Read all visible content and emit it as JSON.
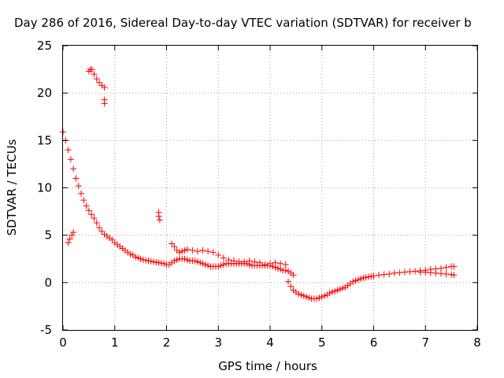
{
  "chart_data": {
    "type": "scatter",
    "title": "Day 286 of 2016, Sidereal Day-to-day VTEC variation (SDTVAR) for receiver b",
    "xlabel": "GPS time / hours",
    "ylabel": "SDTVAR / TECUs",
    "xlim": [
      0,
      8
    ],
    "ylim": [
      -5,
      25
    ],
    "xticks": [
      0,
      1,
      2,
      3,
      4,
      5,
      6,
      7,
      8
    ],
    "yticks": [
      -5,
      0,
      5,
      10,
      15,
      20,
      25
    ],
    "grid": true,
    "marker": "plus",
    "color": "#ff0000",
    "series": [
      {
        "values": [
          [
            0.0,
            15.9
          ],
          [
            0.05,
            15.0
          ],
          [
            0.1,
            14.0
          ],
          [
            0.15,
            13.0
          ],
          [
            0.2,
            12.0
          ],
          [
            0.25,
            11.0
          ],
          [
            0.3,
            10.2
          ],
          [
            0.35,
            9.4
          ],
          [
            0.4,
            8.7
          ],
          [
            0.45,
            8.1
          ],
          [
            0.5,
            7.6
          ],
          [
            0.55,
            7.2
          ],
          [
            0.6,
            6.8
          ],
          [
            0.65,
            6.3
          ],
          [
            0.7,
            5.8
          ],
          [
            0.75,
            5.4
          ],
          [
            0.8,
            5.1
          ],
          [
            0.85,
            4.9
          ],
          [
            0.9,
            4.7
          ],
          [
            0.95,
            4.5
          ],
          [
            1.0,
            4.2
          ],
          [
            1.05,
            4.0
          ],
          [
            1.1,
            3.8
          ],
          [
            1.15,
            3.6
          ],
          [
            1.2,
            3.4
          ],
          [
            1.25,
            3.2
          ],
          [
            1.3,
            3.0
          ],
          [
            1.35,
            2.9
          ],
          [
            1.4,
            2.7
          ],
          [
            1.45,
            2.6
          ],
          [
            1.5,
            2.5
          ],
          [
            1.55,
            2.4
          ],
          [
            1.6,
            2.35
          ],
          [
            1.65,
            2.3
          ],
          [
            1.7,
            2.25
          ],
          [
            1.75,
            2.2
          ],
          [
            1.8,
            2.15
          ],
          [
            1.85,
            2.1
          ],
          [
            1.9,
            2.05
          ],
          [
            1.95,
            2.0
          ],
          [
            2.0,
            1.9
          ],
          [
            2.05,
            1.9
          ],
          [
            2.1,
            2.1
          ],
          [
            2.15,
            2.3
          ],
          [
            2.2,
            2.4
          ],
          [
            2.25,
            2.5
          ],
          [
            2.3,
            2.5
          ],
          [
            2.35,
            2.5
          ],
          [
            2.4,
            2.4
          ],
          [
            2.45,
            2.3
          ],
          [
            2.5,
            2.3
          ],
          [
            2.55,
            2.3
          ],
          [
            2.6,
            2.2
          ],
          [
            2.65,
            2.1
          ],
          [
            2.7,
            2.0
          ],
          [
            2.75,
            1.9
          ],
          [
            2.8,
            1.8
          ],
          [
            2.85,
            1.7
          ],
          [
            2.9,
            1.7
          ],
          [
            2.95,
            1.7
          ],
          [
            3.0,
            1.7
          ],
          [
            3.05,
            1.8
          ],
          [
            3.1,
            1.9
          ],
          [
            3.15,
            2.0
          ],
          [
            3.2,
            2.0
          ],
          [
            3.25,
            2.0
          ],
          [
            3.3,
            2.0
          ],
          [
            3.35,
            2.0
          ],
          [
            3.4,
            2.0
          ],
          [
            3.45,
            2.0
          ],
          [
            3.5,
            2.0
          ],
          [
            3.55,
            2.0
          ],
          [
            3.6,
            1.9
          ],
          [
            3.65,
            1.8
          ],
          [
            3.7,
            1.8
          ],
          [
            3.75,
            1.8
          ],
          [
            3.8,
            1.8
          ],
          [
            3.85,
            1.8
          ],
          [
            3.9,
            1.8
          ],
          [
            3.95,
            1.8
          ],
          [
            4.0,
            1.8
          ],
          [
            4.05,
            1.7
          ],
          [
            4.1,
            1.6
          ],
          [
            4.15,
            1.5
          ],
          [
            4.2,
            1.4
          ],
          [
            4.25,
            1.3
          ],
          [
            4.3,
            1.3
          ],
          [
            4.35,
            1.2
          ],
          [
            4.35,
            0.1
          ],
          [
            4.4,
            -0.4
          ],
          [
            4.45,
            -0.8
          ],
          [
            4.5,
            -1.0
          ],
          [
            4.55,
            -1.2
          ],
          [
            4.6,
            -1.3
          ],
          [
            4.65,
            -1.4
          ],
          [
            4.7,
            -1.5
          ],
          [
            4.75,
            -1.6
          ],
          [
            4.8,
            -1.7
          ],
          [
            4.85,
            -1.7
          ],
          [
            4.9,
            -1.7
          ],
          [
            4.95,
            -1.6
          ],
          [
            5.0,
            -1.5
          ],
          [
            5.05,
            -1.4
          ],
          [
            5.1,
            -1.3
          ],
          [
            5.15,
            -1.1
          ],
          [
            5.2,
            -1.0
          ],
          [
            5.25,
            -0.9
          ],
          [
            5.3,
            -0.8
          ],
          [
            5.35,
            -0.7
          ],
          [
            5.4,
            -0.6
          ],
          [
            5.45,
            -0.5
          ],
          [
            5.5,
            -0.3
          ],
          [
            5.55,
            -0.1
          ],
          [
            5.6,
            0.1
          ],
          [
            5.65,
            0.2
          ],
          [
            5.7,
            0.3
          ],
          [
            5.75,
            0.4
          ],
          [
            5.8,
            0.5
          ],
          [
            5.85,
            0.55
          ],
          [
            5.9,
            0.6
          ],
          [
            5.95,
            0.65
          ],
          [
            6.0,
            0.7
          ],
          [
            6.1,
            0.8
          ],
          [
            6.2,
            0.85
          ],
          [
            6.3,
            0.9
          ],
          [
            6.4,
            1.0
          ],
          [
            6.5,
            1.05
          ],
          [
            6.6,
            1.1
          ],
          [
            6.7,
            1.15
          ],
          [
            6.8,
            1.2
          ],
          [
            6.9,
            1.25
          ],
          [
            7.0,
            1.3
          ],
          [
            7.1,
            1.4
          ],
          [
            7.2,
            1.45
          ],
          [
            7.3,
            1.5
          ],
          [
            7.4,
            1.6
          ],
          [
            7.5,
            1.7
          ],
          [
            7.55,
            1.7
          ],
          [
            6.9,
            1.1
          ],
          [
            7.0,
            1.1
          ],
          [
            7.1,
            1.05
          ],
          [
            7.2,
            1.0
          ],
          [
            7.3,
            0.95
          ],
          [
            7.4,
            0.9
          ],
          [
            7.5,
            0.85
          ],
          [
            7.55,
            0.8
          ],
          [
            2.1,
            4.1
          ],
          [
            2.15,
            3.8
          ],
          [
            2.2,
            3.4
          ],
          [
            2.25,
            3.2
          ],
          [
            2.3,
            3.3
          ],
          [
            2.35,
            3.4
          ],
          [
            2.4,
            3.5
          ],
          [
            2.5,
            3.4
          ],
          [
            2.6,
            3.3
          ],
          [
            2.7,
            3.4
          ],
          [
            2.8,
            3.3
          ],
          [
            2.9,
            3.2
          ],
          [
            3.0,
            2.9
          ],
          [
            3.1,
            2.6
          ],
          [
            3.2,
            2.4
          ],
          [
            3.3,
            2.3
          ],
          [
            3.4,
            2.2
          ],
          [
            3.5,
            2.2
          ],
          [
            3.6,
            2.3
          ],
          [
            3.7,
            2.2
          ],
          [
            3.8,
            2.1
          ],
          [
            3.9,
            1.9
          ],
          [
            4.0,
            2.0
          ],
          [
            4.1,
            2.1
          ],
          [
            4.2,
            2.0
          ],
          [
            4.3,
            1.9
          ],
          [
            4.4,
            1.0
          ],
          [
            4.45,
            0.8
          ],
          [
            0.1,
            4.2
          ],
          [
            0.13,
            4.6
          ],
          [
            0.17,
            5.0
          ],
          [
            0.2,
            5.3
          ],
          [
            0.5,
            22.3
          ],
          [
            0.53,
            22.5
          ],
          [
            0.56,
            22.5
          ],
          [
            0.6,
            22.0
          ],
          [
            0.65,
            21.5
          ],
          [
            0.7,
            21.1
          ],
          [
            0.75,
            20.8
          ],
          [
            0.8,
            20.6
          ],
          [
            0.8,
            19.3
          ],
          [
            0.8,
            18.9
          ],
          [
            1.85,
            7.4
          ],
          [
            1.85,
            7.0
          ],
          [
            1.87,
            6.6
          ]
        ]
      }
    ]
  }
}
